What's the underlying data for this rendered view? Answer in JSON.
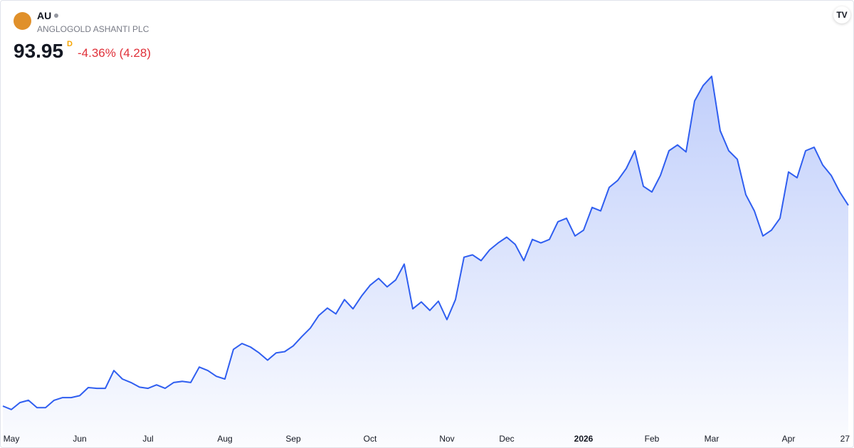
{
  "header": {
    "symbol": "AU",
    "name": "ANGLOGOLD ASHANTI PLC",
    "price": "93.95",
    "resolution": "D",
    "change": "-4.36% (4.28)"
  },
  "chart_data": {
    "type": "area",
    "color": "#2f5ef0",
    "ylim": [
      36,
      147
    ],
    "categories": [
      null,
      "May",
      null,
      null,
      null,
      null,
      null,
      null,
      null,
      "Jun",
      null,
      null,
      null,
      null,
      null,
      null,
      null,
      "Jul",
      null,
      null,
      null,
      null,
      null,
      null,
      null,
      null,
      "Aug",
      null,
      null,
      null,
      null,
      null,
      null,
      null,
      "Sep",
      null,
      null,
      null,
      null,
      null,
      null,
      null,
      null,
      "Oct",
      null,
      null,
      null,
      null,
      null,
      null,
      null,
      null,
      "Nov",
      null,
      null,
      null,
      null,
      null,
      null,
      "Dec",
      null,
      null,
      null,
      null,
      null,
      null,
      null,
      null,
      "2026",
      null,
      null,
      null,
      null,
      null,
      null,
      null,
      "Feb",
      null,
      null,
      null,
      null,
      null,
      null,
      "Mar",
      null,
      null,
      null,
      null,
      null,
      null,
      null,
      null,
      "Apr",
      null,
      null,
      null,
      null,
      null,
      null,
      "27"
    ],
    "values": [
      41.9,
      41.0,
      42.8,
      43.4,
      41.5,
      41.5,
      43.4,
      44.1,
      44.1,
      44.6,
      46.7,
      46.5,
      46.5,
      51.1,
      48.9,
      48.0,
      46.8,
      46.5,
      47.4,
      46.5,
      48.0,
      48.3,
      48.0,
      52.0,
      51.1,
      49.6,
      48.9,
      56.6,
      58.1,
      57.2,
      55.7,
      53.8,
      55.7,
      56.0,
      57.5,
      59.9,
      62.1,
      65.4,
      67.3,
      65.8,
      69.5,
      67.1,
      70.4,
      73.2,
      75.0,
      72.8,
      74.6,
      78.7,
      67.1,
      68.9,
      66.7,
      69.1,
      64.3,
      69.5,
      80.5,
      81.1,
      79.6,
      82.4,
      84.2,
      85.7,
      83.8,
      79.6,
      85.1,
      84.2,
      85.1,
      89.7,
      90.6,
      86.0,
      87.5,
      93.4,
      92.5,
      98.6,
      100.4,
      103.5,
      108.1,
      98.9,
      97.4,
      101.7,
      108.1,
      109.6,
      107.8,
      121.0,
      125.0,
      127.4,
      113.3,
      108.1,
      105.9,
      96.7,
      92.5,
      86.0,
      87.5,
      90.6,
      102.6,
      101.1,
      108.1,
      109.0,
      104.4,
      101.7,
      97.4,
      93.95
    ]
  }
}
